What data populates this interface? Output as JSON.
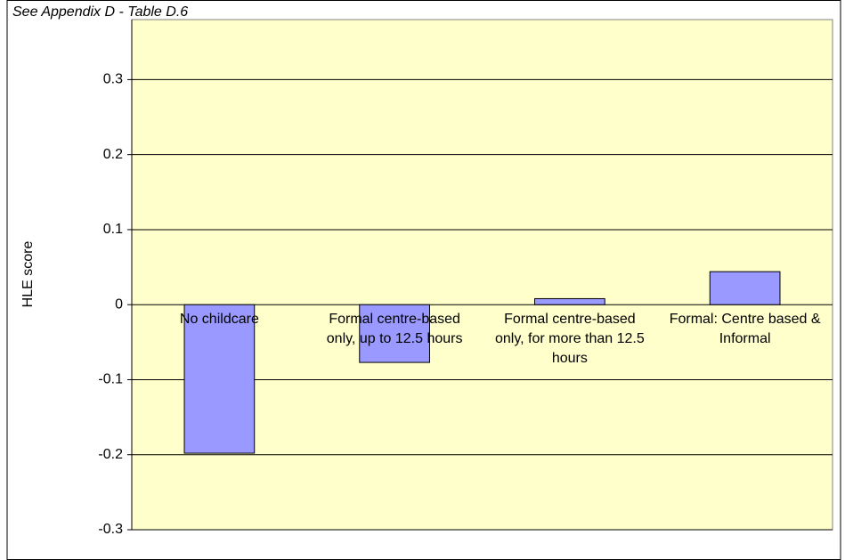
{
  "chart_data": {
    "type": "bar",
    "note": "See Appendix D - Table D.6",
    "y_label": "HLE score",
    "categories": [
      "No childcare",
      "Formal centre-based only, up to 12.5 hours",
      "Formal centre-based only, for more than 12.5 hours",
      "Formal: Centre based & Informal"
    ],
    "values": [
      -0.198,
      -0.077,
      0.008,
      0.044
    ],
    "color": "#9999ff",
    "background": "#ffffcc",
    "ylim": [
      -0.3,
      0.38
    ],
    "yticks": [
      -0.3,
      -0.2,
      -0.1,
      0,
      0.1,
      0.2,
      0.3
    ],
    "grid": true
  }
}
